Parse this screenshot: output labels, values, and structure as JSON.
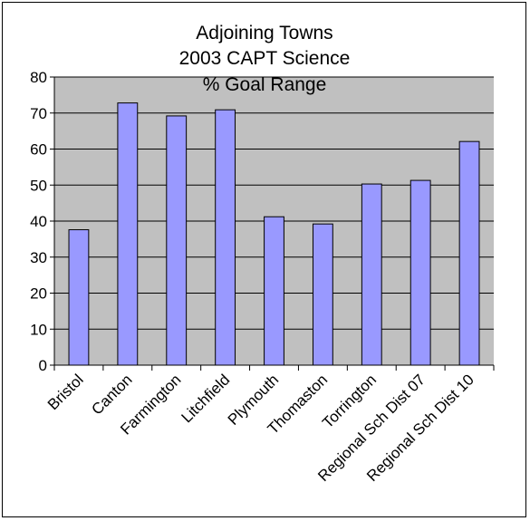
{
  "chart_data": {
    "type": "bar",
    "title_lines": [
      "Adjoining Towns",
      "2003 CAPT Science",
      "% Goal Range"
    ],
    "categories": [
      "Bristol",
      "Canton",
      "Farmington",
      "Litchfield",
      "Plymouth",
      "Thomaston",
      "Torrington",
      "Regional Sch Dist 07",
      "Regional Sch Dist 10"
    ],
    "values": [
      37.6,
      72.8,
      69.2,
      70.9,
      41.2,
      39.2,
      50.3,
      51.3,
      62.1
    ],
    "ylim": [
      0,
      80
    ],
    "yticks": [
      0,
      10,
      20,
      30,
      40,
      50,
      60,
      70,
      80
    ],
    "grid": true,
    "legend": "none",
    "colors": {
      "bar_fill": "#9999ff",
      "plot_background": "#c0c0c0",
      "gridline": "#000000"
    }
  }
}
